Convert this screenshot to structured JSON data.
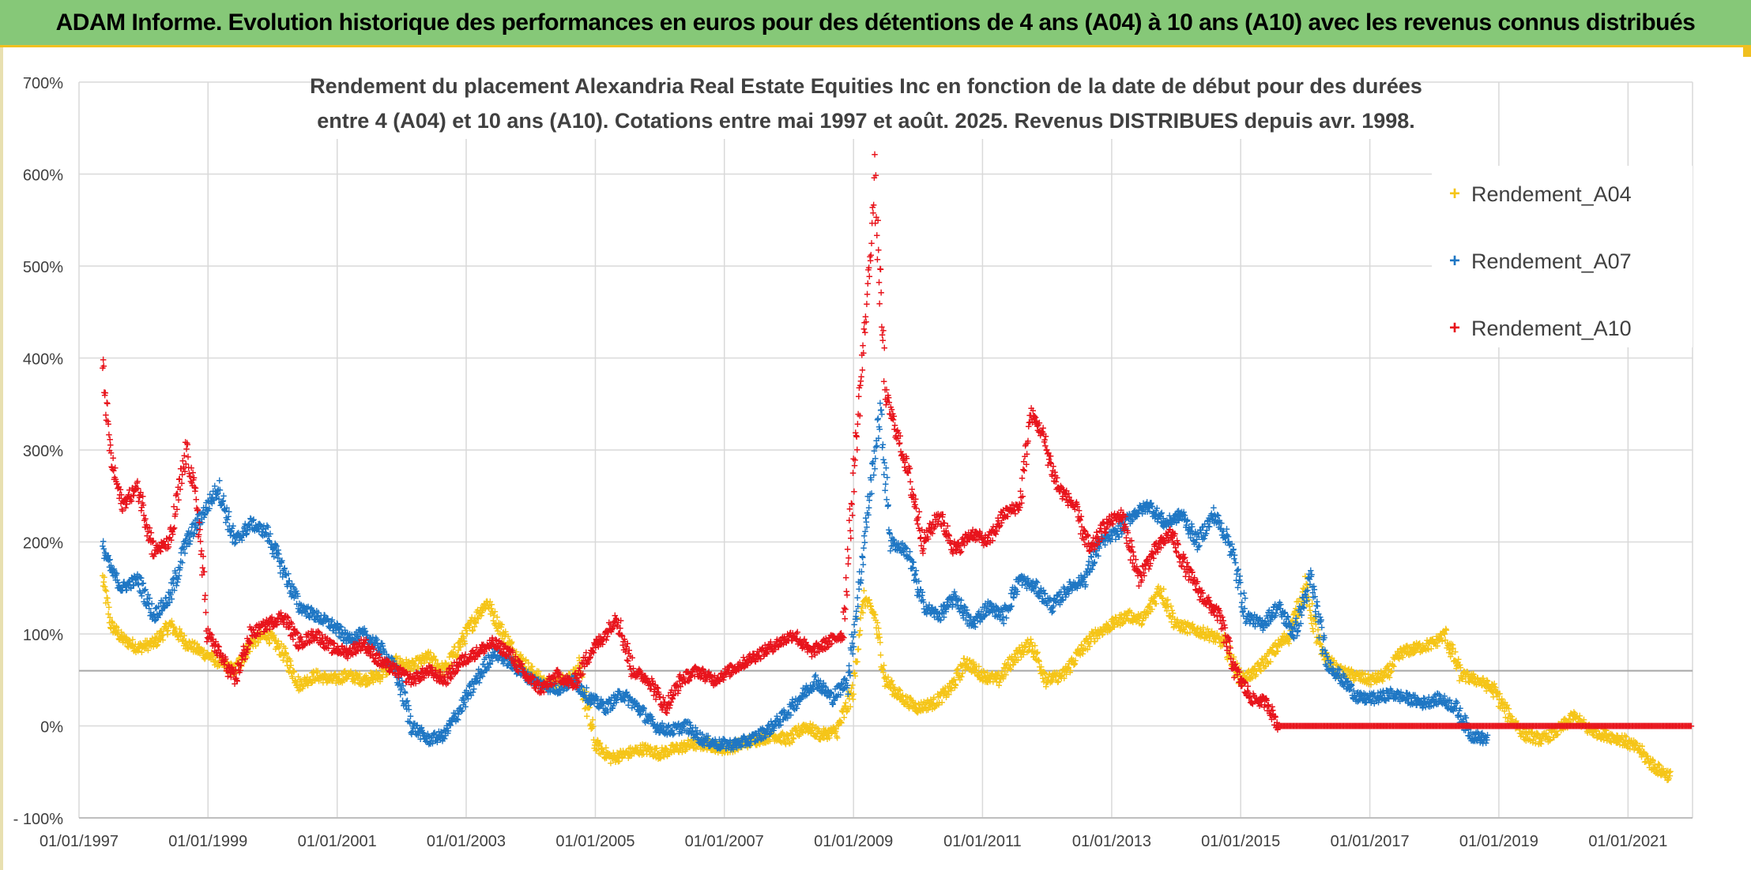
{
  "banner_title": "ADAM Informe. Evolution historique des performances en euros pour des détentions de 4 ans (A04) à 10 ans (A10) avec les revenus connus distribués",
  "colors": {
    "banner": "#86c878",
    "A04": "#f5c518",
    "A07": "#1f77c4",
    "A10": "#e8141c",
    "grid": "#d9d9d9",
    "text": "#404040"
  },
  "chart_data": {
    "type": "scatter",
    "title_lines": [
      "Rendement du placement Alexandria Real Estate Equities Inc en fonction de la date de début pour des durées",
      "entre 4 (A04) et 10 ans (A10). Cotations entre mai 1997 et août. 2025. Revenus DISTRIBUES depuis avr. 1998."
    ],
    "xlabel": "",
    "ylabel": "",
    "x_ticks": [
      "01/01/1997",
      "01/01/1999",
      "01/01/2001",
      "01/01/2003",
      "01/01/2005",
      "01/01/2007",
      "01/01/2009",
      "01/01/2011",
      "01/01/2013",
      "01/01/2015",
      "01/01/2017",
      "01/01/2019",
      "01/01/2021"
    ],
    "xlim": [
      "1997-01-01",
      "2022-01-01"
    ],
    "y_ticks": [
      "700%",
      "600%",
      "500%",
      "400%",
      "300%",
      "200%",
      "100%",
      "0%",
      "- 100%"
    ],
    "ylim": [
      -100,
      700
    ],
    "grid": true,
    "reference_line_y": 60,
    "legend_position": "top-right",
    "series": [
      {
        "name": "Rendement_A04",
        "points": [
          [
            "1997-05-15",
            160
          ],
          [
            "1997-07-01",
            110
          ],
          [
            "1997-09-01",
            95
          ],
          [
            "1997-12-01",
            85
          ],
          [
            "1998-03-01",
            90
          ],
          [
            "1998-06-01",
            110
          ],
          [
            "1998-09-01",
            90
          ],
          [
            "1998-12-01",
            80
          ],
          [
            "1999-03-01",
            70
          ],
          [
            "1999-06-01",
            60
          ],
          [
            "1999-09-01",
            90
          ],
          [
            "1999-12-01",
            100
          ],
          [
            "2000-03-01",
            80
          ],
          [
            "2000-06-01",
            45
          ],
          [
            "2000-09-01",
            55
          ],
          [
            "2000-12-01",
            50
          ],
          [
            "2001-03-01",
            55
          ],
          [
            "2001-06-01",
            50
          ],
          [
            "2001-09-01",
            55
          ],
          [
            "2001-12-01",
            70
          ],
          [
            "2002-03-01",
            65
          ],
          [
            "2002-06-01",
            75
          ],
          [
            "2002-09-01",
            60
          ],
          [
            "2002-12-01",
            90
          ],
          [
            "2003-03-01",
            120
          ],
          [
            "2003-05-01",
            135
          ],
          [
            "2003-07-01",
            110
          ],
          [
            "2003-10-01",
            80
          ],
          [
            "2004-01-01",
            60
          ],
          [
            "2004-04-01",
            45
          ],
          [
            "2004-07-01",
            50
          ],
          [
            "2004-10-01",
            60
          ],
          [
            "2005-01-01",
            -20
          ],
          [
            "2005-04-01",
            -35
          ],
          [
            "2005-07-01",
            -30
          ],
          [
            "2005-10-01",
            -25
          ],
          [
            "2006-01-01",
            -30
          ],
          [
            "2006-04-01",
            -25
          ],
          [
            "2006-07-01",
            -20
          ],
          [
            "2006-10-01",
            -20
          ],
          [
            "2007-01-01",
            -25
          ],
          [
            "2007-04-01",
            -20
          ],
          [
            "2007-07-01",
            -15
          ],
          [
            "2007-10-01",
            -10
          ],
          [
            "2008-01-01",
            -15
          ],
          [
            "2008-04-01",
            0
          ],
          [
            "2008-07-01",
            -10
          ],
          [
            "2008-10-01",
            -5
          ],
          [
            "2009-01-01",
            40
          ],
          [
            "2009-02-01",
            100
          ],
          [
            "2009-03-01",
            140
          ],
          [
            "2009-05-01",
            120
          ],
          [
            "2009-07-01",
            50
          ],
          [
            "2009-10-01",
            30
          ],
          [
            "2010-01-01",
            20
          ],
          [
            "2010-04-01",
            25
          ],
          [
            "2010-07-01",
            40
          ],
          [
            "2010-10-01",
            70
          ],
          [
            "2011-01-01",
            55
          ],
          [
            "2011-04-01",
            50
          ],
          [
            "2011-07-01",
            75
          ],
          [
            "2011-10-01",
            90
          ],
          [
            "2012-01-01",
            50
          ],
          [
            "2012-04-01",
            55
          ],
          [
            "2012-07-01",
            80
          ],
          [
            "2012-10-01",
            100
          ],
          [
            "2013-01-01",
            110
          ],
          [
            "2013-04-01",
            120
          ],
          [
            "2013-07-01",
            115
          ],
          [
            "2013-10-01",
            150
          ],
          [
            "2014-01-01",
            110
          ],
          [
            "2014-04-01",
            105
          ],
          [
            "2014-07-01",
            100
          ],
          [
            "2014-10-01",
            90
          ],
          [
            "2015-01-01",
            50
          ],
          [
            "2015-04-01",
            60
          ],
          [
            "2015-07-01",
            80
          ],
          [
            "2015-10-01",
            100
          ],
          [
            "2016-01-01",
            150
          ],
          [
            "2016-04-01",
            80
          ],
          [
            "2016-07-01",
            60
          ],
          [
            "2016-10-01",
            55
          ],
          [
            "2017-01-01",
            50
          ],
          [
            "2017-04-01",
            55
          ],
          [
            "2017-07-01",
            80
          ],
          [
            "2017-10-01",
            85
          ],
          [
            "2018-01-01",
            90
          ],
          [
            "2018-03-01",
            100
          ],
          [
            "2018-06-01",
            55
          ],
          [
            "2018-09-01",
            50
          ],
          [
            "2018-12-01",
            40
          ],
          [
            "2019-03-01",
            10
          ],
          [
            "2019-06-01",
            -10
          ],
          [
            "2019-09-01",
            -15
          ],
          [
            "2019-12-01",
            -5
          ],
          [
            "2020-03-01",
            10
          ],
          [
            "2020-06-01",
            -5
          ],
          [
            "2020-09-01",
            -10
          ],
          [
            "2020-12-01",
            -15
          ],
          [
            "2021-03-01",
            -25
          ],
          [
            "2021-06-01",
            -45
          ],
          [
            "2021-09-01",
            -55
          ]
        ]
      },
      {
        "name": "Rendement_A07",
        "points": [
          [
            "1997-05-15",
            195
          ],
          [
            "1997-07-01",
            170
          ],
          [
            "1997-09-01",
            150
          ],
          [
            "1997-12-01",
            160
          ],
          [
            "1998-03-01",
            120
          ],
          [
            "1998-06-01",
            140
          ],
          [
            "1998-09-01",
            200
          ],
          [
            "1998-12-01",
            230
          ],
          [
            "1999-03-01",
            260
          ],
          [
            "1999-06-01",
            200
          ],
          [
            "1999-09-01",
            220
          ],
          [
            "1999-12-01",
            210
          ],
          [
            "2000-03-01",
            170
          ],
          [
            "2000-06-01",
            130
          ],
          [
            "2000-09-01",
            120
          ],
          [
            "2000-12-01",
            110
          ],
          [
            "2001-03-01",
            95
          ],
          [
            "2001-06-01",
            100
          ],
          [
            "2001-09-01",
            85
          ],
          [
            "2001-12-01",
            60
          ],
          [
            "2002-03-01",
            0
          ],
          [
            "2002-06-01",
            -15
          ],
          [
            "2002-09-01",
            -10
          ],
          [
            "2002-12-01",
            20
          ],
          [
            "2003-03-01",
            50
          ],
          [
            "2003-06-01",
            80
          ],
          [
            "2003-09-01",
            70
          ],
          [
            "2003-12-01",
            55
          ],
          [
            "2004-03-01",
            45
          ],
          [
            "2004-06-01",
            40
          ],
          [
            "2004-09-01",
            50
          ],
          [
            "2004-12-01",
            30
          ],
          [
            "2005-03-01",
            20
          ],
          [
            "2005-06-01",
            35
          ],
          [
            "2005-09-01",
            20
          ],
          [
            "2005-12-01",
            0
          ],
          [
            "2006-03-01",
            -5
          ],
          [
            "2006-06-01",
            0
          ],
          [
            "2006-09-01",
            -15
          ],
          [
            "2006-12-01",
            -20
          ],
          [
            "2007-03-01",
            -20
          ],
          [
            "2007-06-01",
            -15
          ],
          [
            "2007-09-01",
            -5
          ],
          [
            "2007-12-01",
            10
          ],
          [
            "2008-03-01",
            30
          ],
          [
            "2008-06-01",
            50
          ],
          [
            "2008-09-01",
            30
          ],
          [
            "2008-12-01",
            50
          ],
          [
            "2009-02-01",
            150
          ],
          [
            "2009-04-01",
            250
          ],
          [
            "2009-06-01",
            340
          ],
          [
            "2009-08-01",
            200
          ],
          [
            "2009-11-01",
            190
          ],
          [
            "2010-02-01",
            130
          ],
          [
            "2010-05-01",
            120
          ],
          [
            "2010-08-01",
            140
          ],
          [
            "2010-11-01",
            110
          ],
          [
            "2011-02-01",
            130
          ],
          [
            "2011-05-01",
            120
          ],
          [
            "2011-08-01",
            160
          ],
          [
            "2011-11-01",
            150
          ],
          [
            "2012-02-01",
            130
          ],
          [
            "2012-05-01",
            150
          ],
          [
            "2012-08-01",
            160
          ],
          [
            "2012-11-01",
            200
          ],
          [
            "2013-02-01",
            210
          ],
          [
            "2013-05-01",
            230
          ],
          [
            "2013-08-01",
            240
          ],
          [
            "2013-11-01",
            220
          ],
          [
            "2014-02-01",
            230
          ],
          [
            "2014-05-01",
            200
          ],
          [
            "2014-08-01",
            230
          ],
          [
            "2014-11-01",
            200
          ],
          [
            "2015-02-01",
            120
          ],
          [
            "2015-05-01",
            110
          ],
          [
            "2015-08-01",
            130
          ],
          [
            "2015-11-01",
            100
          ],
          [
            "2016-02-01",
            160
          ],
          [
            "2016-05-01",
            70
          ],
          [
            "2016-08-01",
            50
          ],
          [
            "2016-11-01",
            30
          ],
          [
            "2017-02-01",
            30
          ],
          [
            "2017-05-01",
            35
          ],
          [
            "2017-08-01",
            30
          ],
          [
            "2017-11-01",
            25
          ],
          [
            "2018-02-01",
            30
          ],
          [
            "2018-05-01",
            20
          ],
          [
            "2018-08-01",
            -10
          ],
          [
            "2018-11-01",
            -15
          ]
        ]
      },
      {
        "name": "Rendement_A10",
        "points": [
          [
            "1997-05-15",
            390
          ],
          [
            "1997-07-01",
            290
          ],
          [
            "1997-09-01",
            240
          ],
          [
            "1997-12-01",
            260
          ],
          [
            "1998-03-01",
            190
          ],
          [
            "1998-06-01",
            200
          ],
          [
            "1998-09-01",
            300
          ],
          [
            "1998-11-01",
            240
          ],
          [
            "1999-01-01",
            100
          ],
          [
            "1999-03-01",
            80
          ],
          [
            "1999-06-01",
            50
          ],
          [
            "1999-09-01",
            100
          ],
          [
            "1999-12-01",
            110
          ],
          [
            "2000-03-01",
            120
          ],
          [
            "2000-06-01",
            90
          ],
          [
            "2000-09-01",
            100
          ],
          [
            "2000-12-01",
            85
          ],
          [
            "2001-03-01",
            80
          ],
          [
            "2001-06-01",
            90
          ],
          [
            "2001-09-01",
            70
          ],
          [
            "2001-12-01",
            60
          ],
          [
            "2002-03-01",
            50
          ],
          [
            "2002-06-01",
            60
          ],
          [
            "2002-09-01",
            50
          ],
          [
            "2002-12-01",
            70
          ],
          [
            "2003-03-01",
            80
          ],
          [
            "2003-06-01",
            90
          ],
          [
            "2003-09-01",
            80
          ],
          [
            "2003-12-01",
            55
          ],
          [
            "2004-03-01",
            40
          ],
          [
            "2004-06-01",
            55
          ],
          [
            "2004-09-01",
            45
          ],
          [
            "2004-12-01",
            80
          ],
          [
            "2005-03-01",
            100
          ],
          [
            "2005-05-01",
            120
          ],
          [
            "2005-08-01",
            60
          ],
          [
            "2005-11-01",
            50
          ],
          [
            "2006-02-01",
            20
          ],
          [
            "2006-05-01",
            50
          ],
          [
            "2006-08-01",
            60
          ],
          [
            "2006-11-01",
            50
          ],
          [
            "2007-02-01",
            60
          ],
          [
            "2007-05-01",
            70
          ],
          [
            "2007-08-01",
            80
          ],
          [
            "2007-11-01",
            90
          ],
          [
            "2008-02-01",
            100
          ],
          [
            "2008-05-01",
            80
          ],
          [
            "2008-08-01",
            90
          ],
          [
            "2008-11-01",
            100
          ],
          [
            "2009-01-01",
            270
          ],
          [
            "2009-03-01",
            420
          ],
          [
            "2009-04-01",
            500
          ],
          [
            "2009-05-01",
            590
          ],
          [
            "2009-07-01",
            360
          ],
          [
            "2009-09-01",
            320
          ],
          [
            "2009-11-01",
            280
          ],
          [
            "2010-02-01",
            200
          ],
          [
            "2010-05-01",
            230
          ],
          [
            "2010-08-01",
            190
          ],
          [
            "2010-11-01",
            210
          ],
          [
            "2011-02-01",
            200
          ],
          [
            "2011-05-01",
            230
          ],
          [
            "2011-08-01",
            240
          ],
          [
            "2011-10-01",
            340
          ],
          [
            "2011-12-01",
            320
          ],
          [
            "2012-03-01",
            260
          ],
          [
            "2012-06-01",
            240
          ],
          [
            "2012-09-01",
            190
          ],
          [
            "2012-12-01",
            220
          ],
          [
            "2013-03-01",
            230
          ],
          [
            "2013-06-01",
            160
          ],
          [
            "2013-09-01",
            190
          ],
          [
            "2013-12-01",
            210
          ],
          [
            "2014-03-01",
            170
          ],
          [
            "2014-06-01",
            140
          ],
          [
            "2014-09-01",
            120
          ],
          [
            "2014-12-01",
            60
          ],
          [
            "2015-03-01",
            30
          ],
          [
            "2015-06-01",
            25
          ],
          [
            "2015-08-01",
            0
          ],
          [
            "2021-12-31",
            0
          ]
        ]
      }
    ]
  }
}
